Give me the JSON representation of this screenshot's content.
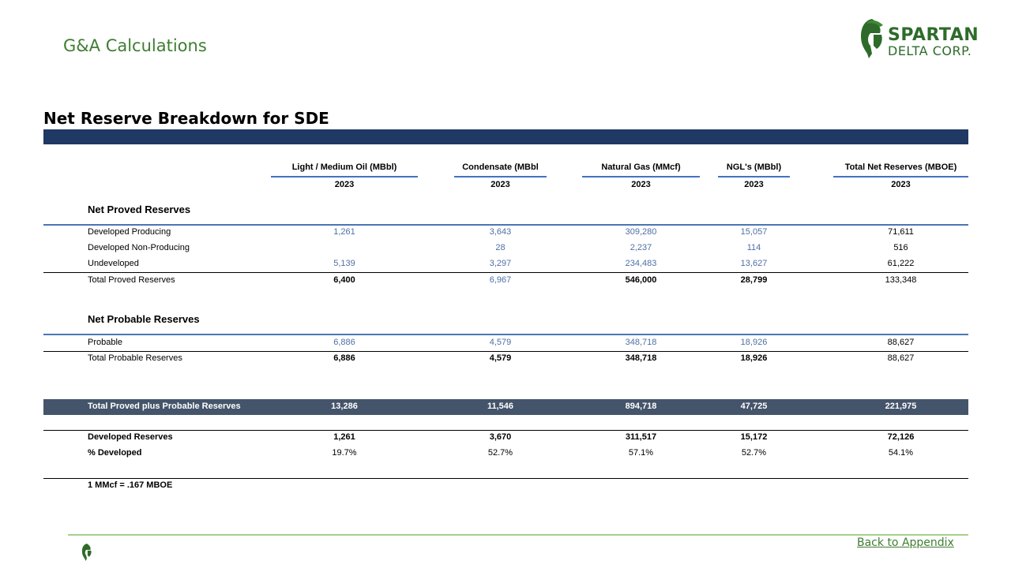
{
  "header": {
    "title": "G&A Calculations"
  },
  "logo": {
    "line1": "SPARTAN",
    "line2": "DELTA CORP.",
    "icon": "spartan-helmet-icon",
    "color": "#2e6b2a"
  },
  "section": {
    "title": "Net Reserve Breakdown for SDE"
  },
  "columns": [
    {
      "header": "Light / Medium Oil (MBbl)",
      "year": "2023"
    },
    {
      "header": "Condensate (MBbl",
      "year": "2023"
    },
    {
      "header": "Natural Gas (MMcf)",
      "year": "2023"
    },
    {
      "header": "NGL's (MBbl)",
      "year": "2023"
    },
    {
      "header": "Total Net Reserves (MBOE)",
      "year": "2023"
    }
  ],
  "proved": {
    "title": "Net Proved Reserves",
    "rows": [
      {
        "label": "Developed Producing",
        "values": [
          "1,261",
          "3,643",
          "309,280",
          "15,057",
          "71,611"
        ]
      },
      {
        "label": "Developed Non-Producing",
        "values": [
          "",
          "28",
          "2,237",
          "114",
          "516"
        ]
      },
      {
        "label": "Undeveloped",
        "values": [
          "5,139",
          "3,297",
          "234,483",
          "13,627",
          "61,222"
        ]
      }
    ],
    "total": {
      "label": "Total Proved Reserves",
      "values": [
        "6,400",
        "6,967",
        "546,000",
        "28,799",
        "133,348"
      ]
    }
  },
  "probable": {
    "title": "Net Probable Reserves",
    "rows": [
      {
        "label": "Probable",
        "values": [
          "6,886",
          "4,579",
          "348,718",
          "18,926",
          "88,627"
        ]
      }
    ],
    "total": {
      "label": "Total Probable Reserves",
      "values": [
        "6,886",
        "4,579",
        "348,718",
        "18,926",
        "88,627"
      ]
    }
  },
  "grand_total": {
    "label": "Total Proved plus Probable Reserves",
    "values": [
      "13,286",
      "11,546",
      "894,718",
      "47,725",
      "221,975"
    ]
  },
  "developed": {
    "label": "Developed Reserves",
    "values": [
      "1,261",
      "3,670",
      "311,517",
      "15,172",
      "72,126"
    ]
  },
  "pct_developed": {
    "label": "% Developed",
    "values": [
      "19.7%",
      "52.7%",
      "57.1%",
      "52.7%",
      "54.1%"
    ]
  },
  "footnote": "1 MMcf = .167 MBOE",
  "footer": {
    "back_link": "Back to Appendix"
  },
  "colors": {
    "navy": "#1f3864",
    "band": "#44546a",
    "accent_green": "#3f7d32",
    "value_blue": "#4f6fa6"
  }
}
